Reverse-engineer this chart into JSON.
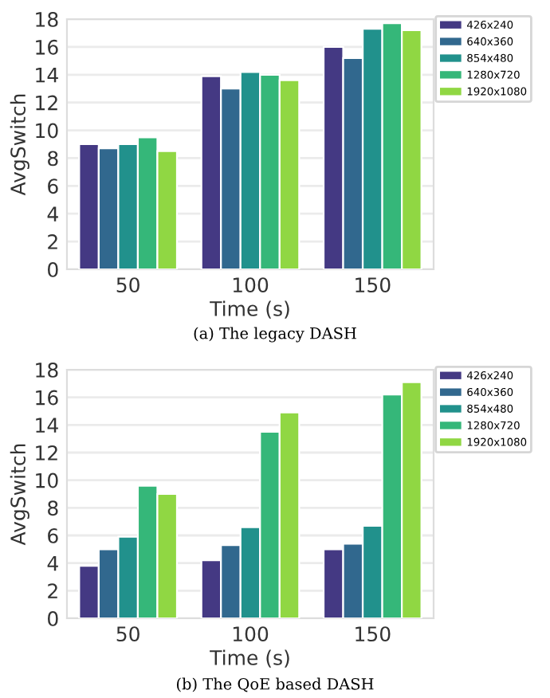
{
  "chart_data": [
    {
      "type": "bar",
      "xlabel": "Time (s)",
      "ylabel": "AvgSwitch",
      "categories": [
        "50",
        "100",
        "150"
      ],
      "ylim": [
        0,
        18
      ],
      "yticks": [
        0,
        2,
        4,
        6,
        8,
        10,
        12,
        14,
        16,
        18
      ],
      "grid": "y",
      "legend": "top right",
      "annotations": [
        "(a) The legacy DASH"
      ],
      "series": [
        {
          "name": "426x240",
          "color": "#443983",
          "values": [
            9.0,
            13.9,
            16.0
          ]
        },
        {
          "name": "640x360",
          "color": "#31688e",
          "values": [
            8.7,
            13.0,
            15.2
          ]
        },
        {
          "name": "854x480",
          "color": "#21918c",
          "values": [
            9.0,
            14.2,
            17.3
          ]
        },
        {
          "name": "1280x720",
          "color": "#35b779",
          "values": [
            9.5,
            14.0,
            17.7
          ]
        },
        {
          "name": "1920x1080",
          "color": "#90d743",
          "values": [
            8.5,
            13.6,
            17.2
          ]
        }
      ]
    },
    {
      "type": "bar",
      "xlabel": "Time (s)",
      "ylabel": "AvgSwitch",
      "categories": [
        "50",
        "100",
        "150"
      ],
      "ylim": [
        0,
        18
      ],
      "yticks": [
        0,
        2,
        4,
        6,
        8,
        10,
        12,
        14,
        16,
        18
      ],
      "grid": "y",
      "legend": "top right",
      "annotations": [
        "(b) The QoE based DASH"
      ],
      "series": [
        {
          "name": "426x240",
          "color": "#443983",
          "values": [
            3.8,
            4.2,
            5.0
          ]
        },
        {
          "name": "640x360",
          "color": "#31688e",
          "values": [
            5.0,
            5.3,
            5.4
          ]
        },
        {
          "name": "854x480",
          "color": "#21918c",
          "values": [
            5.9,
            6.6,
            6.7
          ]
        },
        {
          "name": "1280x720",
          "color": "#35b779",
          "values": [
            9.6,
            13.5,
            16.2
          ]
        },
        {
          "name": "1920x1080",
          "color": "#90d743",
          "values": [
            9.0,
            14.9,
            17.1
          ]
        }
      ]
    }
  ]
}
